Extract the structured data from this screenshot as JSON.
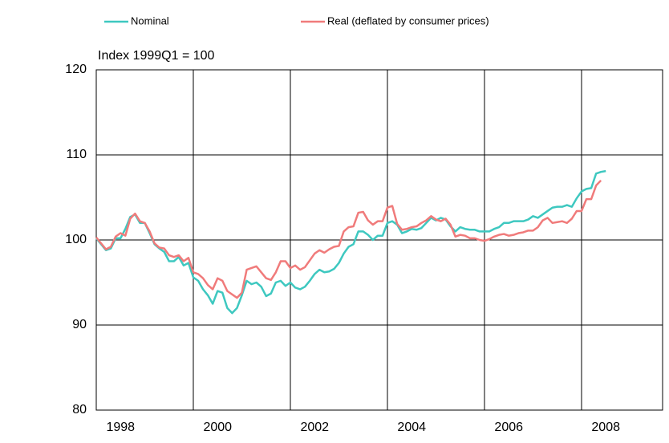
{
  "chart_data": {
    "type": "line",
    "ylabel": "Index 1999Q1 = 100",
    "x": [
      1998.0,
      1998.1,
      1998.2,
      1998.3,
      1998.4,
      1998.5,
      1998.6,
      1998.7,
      1998.8,
      1998.9,
      1999.0,
      1999.1,
      1999.2,
      1999.3,
      1999.4,
      1999.5,
      1999.6,
      1999.7,
      1999.8,
      1999.9,
      2000.0,
      2000.1,
      2000.2,
      2000.3,
      2000.4,
      2000.5,
      2000.6,
      2000.7,
      2000.8,
      2000.9,
      2001.0,
      2001.1,
      2001.2,
      2001.3,
      2001.4,
      2001.5,
      2001.6,
      2001.7,
      2001.8,
      2001.9,
      2002.0,
      2002.1,
      2002.2,
      2002.3,
      2002.4,
      2002.5,
      2002.6,
      2002.7,
      2002.8,
      2002.9,
      2003.0,
      2003.1,
      2003.2,
      2003.3,
      2003.4,
      2003.5,
      2003.6,
      2003.7,
      2003.8,
      2003.9,
      2004.0,
      2004.1,
      2004.2,
      2004.3,
      2004.4,
      2004.5,
      2004.6,
      2004.7,
      2004.8,
      2004.9,
      2005.0,
      2005.1,
      2005.2,
      2005.3,
      2005.4,
      2005.5,
      2005.6,
      2005.7,
      2005.8,
      2005.9,
      2006.0,
      2006.1,
      2006.2,
      2006.3,
      2006.4,
      2006.5,
      2006.6,
      2006.7,
      2006.8,
      2006.9,
      2007.0,
      2007.1,
      2007.2,
      2007.3,
      2007.4,
      2007.5,
      2007.6,
      2007.7,
      2007.8,
      2007.9,
      2008.0,
      2008.1,
      2008.2,
      2008.3,
      2008.4,
      2008.5
    ],
    "series": [
      {
        "name": "Nominal",
        "color": "#3ec8c0",
        "values": [
          100.2,
          99.5,
          98.8,
          99.0,
          100.2,
          100.2,
          101.3,
          102.7,
          103.0,
          102.0,
          102.0,
          100.8,
          99.5,
          99.0,
          98.6,
          97.5,
          97.5,
          98.0,
          97.0,
          97.3,
          95.6,
          95.2,
          94.2,
          93.5,
          92.5,
          94.0,
          93.8,
          92.0,
          91.4,
          92.0,
          93.5,
          95.2,
          94.8,
          95.0,
          94.5,
          93.4,
          93.7,
          95.0,
          95.2,
          94.6,
          95.0,
          94.4,
          94.2,
          94.5,
          95.2,
          96.0,
          96.5,
          96.2,
          96.3,
          96.6,
          97.3,
          98.4,
          99.2,
          99.5,
          101.0,
          101.0,
          100.6,
          100.0,
          100.5,
          100.5,
          102.0,
          102.2,
          101.8,
          100.8,
          101.0,
          101.3,
          101.2,
          101.4,
          102.0,
          102.6,
          102.3,
          102.6,
          102.4,
          101.6,
          101.0,
          101.5,
          101.3,
          101.2,
          101.2,
          101.0,
          101.0,
          101.0,
          101.3,
          101.5,
          102.0,
          102.0,
          102.2,
          102.2,
          102.2,
          102.4,
          102.8,
          102.6,
          103.0,
          103.4,
          103.8,
          103.9,
          103.9,
          104.1,
          103.9,
          104.9,
          105.7,
          106.0,
          106.1,
          107.8,
          108.0,
          108.1
        ]
      },
      {
        "name": "Real (deflated by consumer prices)",
        "color": "#f07b7b",
        "values": [
          100.3,
          99.6,
          98.9,
          99.2,
          100.4,
          100.8,
          100.5,
          102.5,
          103.1,
          102.2,
          102.0,
          101.0,
          99.6,
          99.1,
          99.0,
          98.2,
          98.0,
          98.2,
          97.5,
          97.9,
          96.2,
          96.0,
          95.5,
          94.7,
          94.2,
          95.5,
          95.2,
          94.0,
          93.6,
          93.2,
          93.8,
          96.5,
          96.7,
          96.9,
          96.2,
          95.5,
          95.3,
          96.2,
          97.5,
          97.5,
          96.7,
          97.0,
          96.5,
          96.8,
          97.6,
          98.4,
          98.8,
          98.5,
          98.9,
          99.2,
          99.3,
          101.0,
          101.5,
          101.6,
          103.2,
          103.3,
          102.3,
          101.8,
          102.2,
          102.2,
          103.8,
          104.0,
          101.9,
          101.2,
          101.3,
          101.5,
          101.6,
          102.0,
          102.3,
          102.8,
          102.4,
          102.2,
          102.5,
          101.8,
          100.4,
          100.6,
          100.5,
          100.2,
          100.2,
          100.0,
          99.9,
          100.1,
          100.4,
          100.6,
          100.7,
          100.5,
          100.6,
          100.8,
          100.9,
          101.1,
          101.1,
          101.5,
          102.3,
          102.6,
          102.0,
          102.1,
          102.2,
          102.0,
          102.5,
          103.4,
          103.4,
          104.8,
          104.8,
          106.4,
          107.0,
          null
        ]
      }
    ],
    "xlim": [
      1998,
      2009.67
    ],
    "xticks": [
      {
        "value": 1998.5,
        "label": "1998"
      },
      {
        "value": 2000.5,
        "label": "2000"
      },
      {
        "value": 2002.5,
        "label": "2002"
      },
      {
        "value": 2004.5,
        "label": "2004"
      },
      {
        "value": 2006.5,
        "label": "2006"
      },
      {
        "value": 2008.5,
        "label": "2008"
      }
    ],
    "xgrid": [
      2000,
      2002,
      2004,
      2006,
      2008
    ],
    "ylim": [
      80,
      120
    ],
    "yticks": [
      80,
      90,
      100,
      110,
      120
    ],
    "grid": true
  }
}
